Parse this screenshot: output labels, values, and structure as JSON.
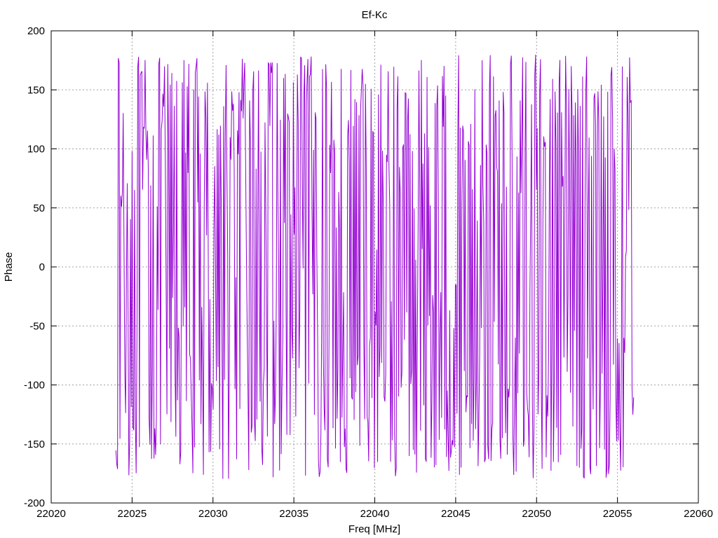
{
  "chart_data": {
    "type": "line",
    "title": "Ef-Kc",
    "xlabel": "Freq [MHz]",
    "ylabel": "Phase",
    "xlim": [
      22020,
      22060
    ],
    "ylim": [
      -200,
      200
    ],
    "x_ticks": [
      22020,
      22025,
      22030,
      22035,
      22040,
      22045,
      22050,
      22055,
      22060
    ],
    "y_ticks": [
      -200,
      -150,
      -100,
      -50,
      0,
      50,
      100,
      150,
      200
    ],
    "grid": true,
    "legend": "none",
    "series": [
      {
        "color": "#9400d3",
        "x_range": [
          22024,
          22056
        ],
        "samples": 640,
        "y_min": -180,
        "y_max": 180,
        "seed": 1234
      }
    ]
  }
}
